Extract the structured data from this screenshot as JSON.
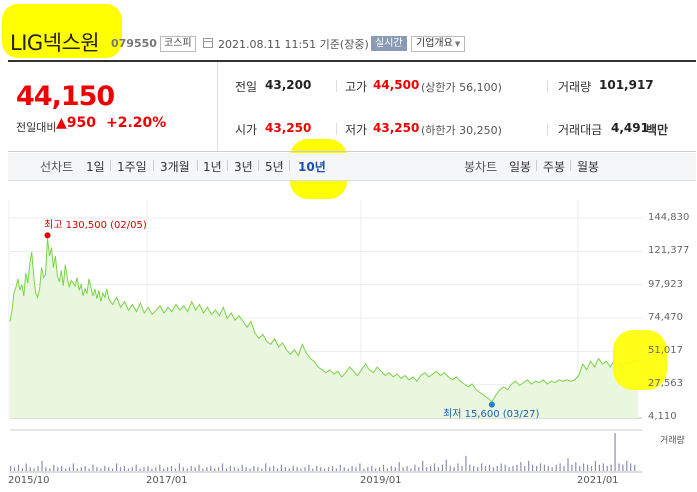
{
  "header": {
    "stock_name": "LIG넥스원",
    "stock_code": "079550",
    "market": "코스피",
    "timestamp": "2021.08.11 11:51 기준(장중)",
    "realtime_label": "실시간",
    "corp_overview_label": "기업개요"
  },
  "quote": {
    "price": "44,150",
    "change_label": "전일대비",
    "change_arrow": "▲",
    "change_value": "950",
    "change_pct": "+2.20%",
    "prev_close_label": "전일",
    "prev_close": "43,200",
    "high_label": "고가",
    "high": "44,500",
    "upper_limit": "(상한가 56,100)",
    "volume_label": "거래량",
    "volume": "101,917",
    "open_label": "시가",
    "open": "43,250",
    "low_label": "저가",
    "low": "43,250",
    "lower_limit": "(하한가 30,250)",
    "amount_label": "거래대금",
    "amount": "4,491",
    "amount_unit": "백만"
  },
  "tabs": {
    "line_chart_label": "선차트",
    "periods": [
      "1일",
      "1주일",
      "3개월",
      "1년",
      "3년",
      "5년",
      "10년"
    ],
    "selected_period": "10년",
    "candle_chart_label": "봉차트",
    "candles": [
      "일봉",
      "주봉",
      "월봉"
    ]
  },
  "colors": {
    "up": "#e00000",
    "line": "#7bd34a",
    "area": "#e8f7dd",
    "low_marker": "#2a7fd4",
    "highlight": "#ffff00"
  },
  "chart_data": {
    "type": "area",
    "x_ticks": [
      "2015/10",
      "2017/01",
      "2019/01",
      "2021/01"
    ],
    "y_ticks": [
      "144,830",
      "121,377",
      "97,923",
      "74,470",
      "51,017",
      "27,563",
      "4,110"
    ],
    "ylim": [
      4110,
      144830
    ],
    "max_annotation": "최고 130,500 (02/05)",
    "min_annotation": "최저 15,600 (03/27)",
    "volume_label": "거래량",
    "series": [
      {
        "x": 0,
        "y": 72000
      },
      {
        "x": 2,
        "y": 80000
      },
      {
        "x": 4,
        "y": 92000
      },
      {
        "x": 6,
        "y": 96000
      },
      {
        "x": 8,
        "y": 102000
      },
      {
        "x": 10,
        "y": 94000
      },
      {
        "x": 12,
        "y": 98000
      },
      {
        "x": 14,
        "y": 90000
      },
      {
        "x": 16,
        "y": 106000
      },
      {
        "x": 18,
        "y": 99000
      },
      {
        "x": 20,
        "y": 112000
      },
      {
        "x": 22,
        "y": 121000
      },
      {
        "x": 24,
        "y": 104000
      },
      {
        "x": 26,
        "y": 92000
      },
      {
        "x": 28,
        "y": 89000
      },
      {
        "x": 30,
        "y": 95000
      },
      {
        "x": 32,
        "y": 110000
      },
      {
        "x": 34,
        "y": 103000
      },
      {
        "x": 36,
        "y": 105000
      },
      {
        "x": 38,
        "y": 130500
      },
      {
        "x": 40,
        "y": 118000
      },
      {
        "x": 42,
        "y": 124000
      },
      {
        "x": 44,
        "y": 110000
      },
      {
        "x": 46,
        "y": 118000
      },
      {
        "x": 48,
        "y": 104000
      },
      {
        "x": 50,
        "y": 100000
      },
      {
        "x": 52,
        "y": 108000
      },
      {
        "x": 54,
        "y": 97000
      },
      {
        "x": 56,
        "y": 112000
      },
      {
        "x": 58,
        "y": 103000
      },
      {
        "x": 60,
        "y": 96000
      },
      {
        "x": 62,
        "y": 101000
      },
      {
        "x": 64,
        "y": 99000
      },
      {
        "x": 66,
        "y": 97000
      },
      {
        "x": 68,
        "y": 103000
      },
      {
        "x": 70,
        "y": 94000
      },
      {
        "x": 72,
        "y": 98000
      },
      {
        "x": 74,
        "y": 90000
      },
      {
        "x": 76,
        "y": 95000
      },
      {
        "x": 78,
        "y": 92000
      },
      {
        "x": 80,
        "y": 102000
      },
      {
        "x": 82,
        "y": 96000
      },
      {
        "x": 84,
        "y": 90000
      },
      {
        "x": 86,
        "y": 95000
      },
      {
        "x": 88,
        "y": 88000
      },
      {
        "x": 90,
        "y": 94000
      },
      {
        "x": 92,
        "y": 86000
      },
      {
        "x": 94,
        "y": 92000
      },
      {
        "x": 96,
        "y": 89000
      },
      {
        "x": 98,
        "y": 95000
      },
      {
        "x": 100,
        "y": 88000
      },
      {
        "x": 104,
        "y": 84000
      },
      {
        "x": 108,
        "y": 89000
      },
      {
        "x": 112,
        "y": 82000
      },
      {
        "x": 116,
        "y": 86000
      },
      {
        "x": 120,
        "y": 80000
      },
      {
        "x": 124,
        "y": 84000
      },
      {
        "x": 128,
        "y": 79000
      },
      {
        "x": 132,
        "y": 85000
      },
      {
        "x": 136,
        "y": 78000
      },
      {
        "x": 140,
        "y": 82000
      },
      {
        "x": 144,
        "y": 77000
      },
      {
        "x": 148,
        "y": 80000
      },
      {
        "x": 152,
        "y": 83000
      },
      {
        "x": 156,
        "y": 78000
      },
      {
        "x": 160,
        "y": 82000
      },
      {
        "x": 164,
        "y": 79000
      },
      {
        "x": 168,
        "y": 84000
      },
      {
        "x": 172,
        "y": 80000
      },
      {
        "x": 176,
        "y": 83000
      },
      {
        "x": 180,
        "y": 79000
      },
      {
        "x": 184,
        "y": 86000
      },
      {
        "x": 188,
        "y": 80000
      },
      {
        "x": 192,
        "y": 84000
      },
      {
        "x": 196,
        "y": 78000
      },
      {
        "x": 200,
        "y": 82000
      },
      {
        "x": 204,
        "y": 77000
      },
      {
        "x": 208,
        "y": 80000
      },
      {
        "x": 212,
        "y": 76000
      },
      {
        "x": 216,
        "y": 82000
      },
      {
        "x": 220,
        "y": 74000
      },
      {
        "x": 224,
        "y": 78000
      },
      {
        "x": 228,
        "y": 73000
      },
      {
        "x": 232,
        "y": 76000
      },
      {
        "x": 236,
        "y": 72000
      },
      {
        "x": 240,
        "y": 68000
      },
      {
        "x": 244,
        "y": 72000
      },
      {
        "x": 248,
        "y": 64000
      },
      {
        "x": 252,
        "y": 60000
      },
      {
        "x": 256,
        "y": 63000
      },
      {
        "x": 260,
        "y": 58000
      },
      {
        "x": 264,
        "y": 56000
      },
      {
        "x": 268,
        "y": 60000
      },
      {
        "x": 272,
        "y": 54000
      },
      {
        "x": 276,
        "y": 57000
      },
      {
        "x": 280,
        "y": 52000
      },
      {
        "x": 284,
        "y": 49000
      },
      {
        "x": 288,
        "y": 52000
      },
      {
        "x": 292,
        "y": 48000
      },
      {
        "x": 296,
        "y": 56000
      },
      {
        "x": 300,
        "y": 50000
      },
      {
        "x": 304,
        "y": 46000
      },
      {
        "x": 308,
        "y": 44000
      },
      {
        "x": 312,
        "y": 40000
      },
      {
        "x": 316,
        "y": 38000
      },
      {
        "x": 320,
        "y": 36000
      },
      {
        "x": 324,
        "y": 38000
      },
      {
        "x": 328,
        "y": 35000
      },
      {
        "x": 332,
        "y": 37000
      },
      {
        "x": 336,
        "y": 33000
      },
      {
        "x": 340,
        "y": 36000
      },
      {
        "x": 344,
        "y": 40000
      },
      {
        "x": 348,
        "y": 37000
      },
      {
        "x": 352,
        "y": 34000
      },
      {
        "x": 356,
        "y": 38000
      },
      {
        "x": 360,
        "y": 42000
      },
      {
        "x": 364,
        "y": 38000
      },
      {
        "x": 368,
        "y": 36000
      },
      {
        "x": 372,
        "y": 40000
      },
      {
        "x": 376,
        "y": 37000
      },
      {
        "x": 380,
        "y": 34000
      },
      {
        "x": 384,
        "y": 36000
      },
      {
        "x": 388,
        "y": 33000
      },
      {
        "x": 392,
        "y": 35000
      },
      {
        "x": 396,
        "y": 32000
      },
      {
        "x": 400,
        "y": 34000
      },
      {
        "x": 404,
        "y": 31000
      },
      {
        "x": 408,
        "y": 33000
      },
      {
        "x": 412,
        "y": 30000
      },
      {
        "x": 416,
        "y": 34000
      },
      {
        "x": 420,
        "y": 36000
      },
      {
        "x": 424,
        "y": 33000
      },
      {
        "x": 428,
        "y": 35000
      },
      {
        "x": 432,
        "y": 37000
      },
      {
        "x": 436,
        "y": 34000
      },
      {
        "x": 440,
        "y": 36000
      },
      {
        "x": 444,
        "y": 33000
      },
      {
        "x": 448,
        "y": 31000
      },
      {
        "x": 452,
        "y": 33000
      },
      {
        "x": 456,
        "y": 30000
      },
      {
        "x": 460,
        "y": 28000
      },
      {
        "x": 464,
        "y": 26000
      },
      {
        "x": 468,
        "y": 28000
      },
      {
        "x": 472,
        "y": 24000
      },
      {
        "x": 476,
        "y": 22000
      },
      {
        "x": 480,
        "y": 20000
      },
      {
        "x": 484,
        "y": 18000
      },
      {
        "x": 488,
        "y": 15600
      },
      {
        "x": 492,
        "y": 20000
      },
      {
        "x": 496,
        "y": 24000
      },
      {
        "x": 500,
        "y": 26000
      },
      {
        "x": 504,
        "y": 24000
      },
      {
        "x": 508,
        "y": 28000
      },
      {
        "x": 512,
        "y": 30000
      },
      {
        "x": 516,
        "y": 27000
      },
      {
        "x": 520,
        "y": 29000
      },
      {
        "x": 524,
        "y": 31000
      },
      {
        "x": 528,
        "y": 28000
      },
      {
        "x": 532,
        "y": 30000
      },
      {
        "x": 536,
        "y": 29000
      },
      {
        "x": 540,
        "y": 31000
      },
      {
        "x": 544,
        "y": 28000
      },
      {
        "x": 548,
        "y": 30000
      },
      {
        "x": 552,
        "y": 29000
      },
      {
        "x": 556,
        "y": 31000
      },
      {
        "x": 560,
        "y": 30000
      },
      {
        "x": 564,
        "y": 31000
      },
      {
        "x": 568,
        "y": 30000
      },
      {
        "x": 572,
        "y": 31000
      },
      {
        "x": 576,
        "y": 34000
      },
      {
        "x": 580,
        "y": 42000
      },
      {
        "x": 584,
        "y": 38000
      },
      {
        "x": 588,
        "y": 44000
      },
      {
        "x": 592,
        "y": 40000
      },
      {
        "x": 596,
        "y": 46000
      },
      {
        "x": 600,
        "y": 42000
      },
      {
        "x": 604,
        "y": 44000
      },
      {
        "x": 608,
        "y": 40000
      },
      {
        "x": 612,
        "y": 45000
      },
      {
        "x": 616,
        "y": 43000
      },
      {
        "x": 620,
        "y": 40000
      },
      {
        "x": 624,
        "y": 44000
      },
      {
        "x": 628,
        "y": 42000
      },
      {
        "x": 632,
        "y": 45000
      },
      {
        "x": 636,
        "y": 44150
      }
    ],
    "volume": [
      4,
      3,
      5,
      2,
      6,
      3,
      2,
      4,
      8,
      3,
      2,
      5,
      3,
      4,
      2,
      3,
      6,
      2,
      3,
      4,
      2,
      5,
      3,
      2,
      4,
      3,
      2,
      6,
      3,
      4,
      2,
      3,
      5,
      2,
      3,
      4,
      2,
      3,
      5,
      2,
      3,
      4,
      2,
      6,
      3,
      2,
      4,
      3,
      5,
      2,
      3,
      4,
      2,
      3,
      6,
      2,
      4,
      3,
      2,
      5,
      3,
      2,
      4,
      3,
      2,
      6,
      3,
      4,
      2,
      5,
      3,
      2,
      4,
      3,
      2,
      3,
      5,
      2,
      4,
      3,
      2,
      3,
      4,
      2,
      5,
      3,
      2,
      4,
      3,
      6,
      2,
      3,
      4,
      2,
      3,
      5,
      2,
      4,
      3,
      7,
      3,
      4,
      2,
      5,
      3,
      8,
      3,
      4,
      6,
      3,
      5,
      9,
      4,
      3,
      6,
      4,
      12,
      5,
      4,
      3,
      6,
      4,
      5,
      3,
      4,
      6,
      5,
      3,
      4,
      5,
      7,
      4,
      8,
      5,
      4,
      6,
      5,
      4,
      3,
      5,
      6,
      4,
      10,
      5,
      7,
      4,
      6,
      5,
      4,
      8,
      5,
      6,
      4,
      5,
      30,
      6,
      5,
      8,
      6,
      5
    ]
  }
}
